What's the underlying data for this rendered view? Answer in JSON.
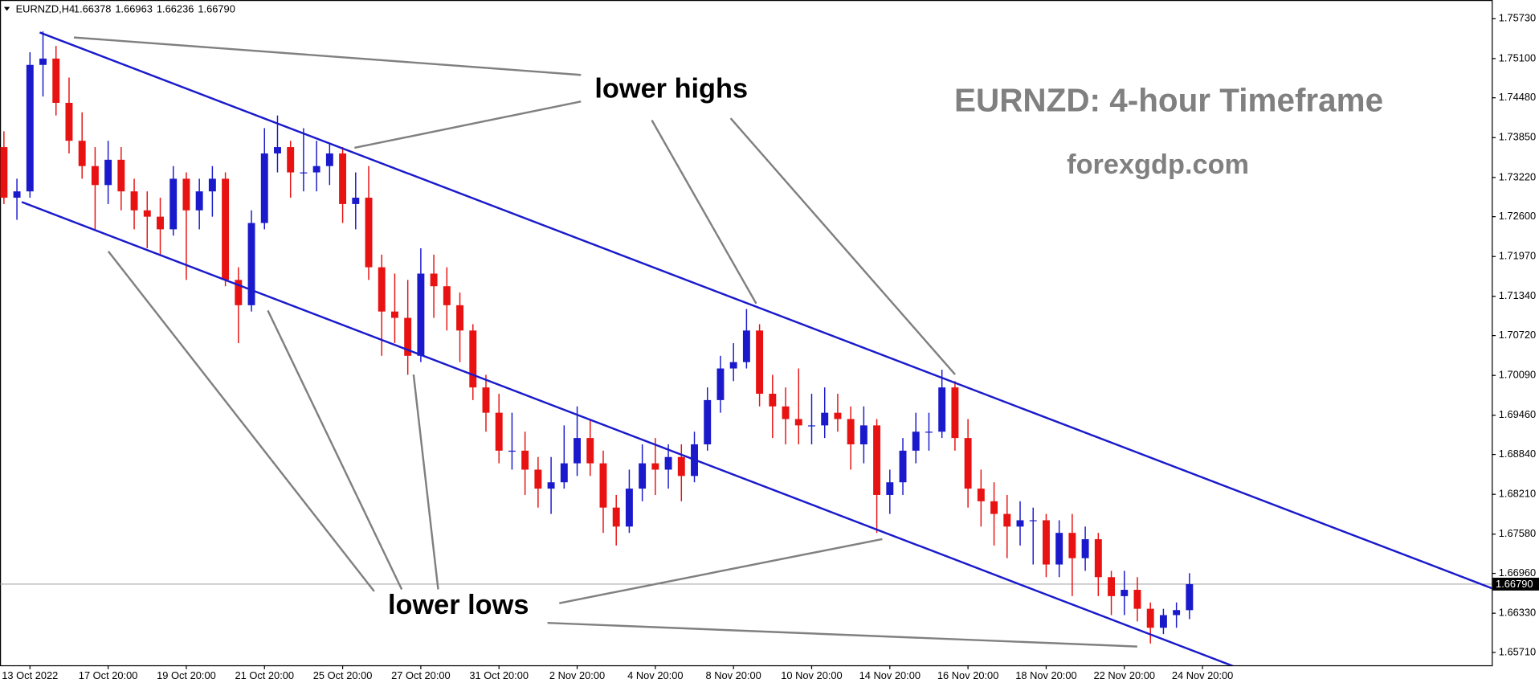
{
  "chart_data": {
    "type": "candlestick",
    "symbol": "EURNZD,H4",
    "header_values": [
      "1.66378",
      "1.66963",
      "1.66236",
      "1.66790"
    ],
    "title": "EURNZD: 4-hour Timeframe",
    "subtitle": "forexgdp.com",
    "annotations": [
      "lower highs",
      "lower lows"
    ],
    "up_color": "#1a1acc",
    "down_color": "#e81212",
    "trendline_color": "#1a1acc",
    "xlim": [
      -0.3,
      114.2
    ],
    "xticks": [
      {
        "value": 2,
        "label": "13 Oct 2022"
      },
      {
        "value": 8,
        "label": "17 Oct 20:00"
      },
      {
        "value": 14,
        "label": "19 Oct 20:00"
      },
      {
        "value": 20,
        "label": "21 Oct 20:00"
      },
      {
        "value": 26,
        "label": "25 Oct 20:00"
      },
      {
        "value": 32,
        "label": "27 Oct 20:00"
      },
      {
        "value": 38,
        "label": "31 Oct 20:00"
      },
      {
        "value": 44,
        "label": "2 Nov 20:00"
      },
      {
        "value": 50,
        "label": "4 Nov 20:00"
      },
      {
        "value": 56,
        "label": "8 Nov 20:00"
      },
      {
        "value": 62,
        "label": "10 Nov 20:00"
      },
      {
        "value": 68,
        "label": "14 Nov 20:00"
      },
      {
        "value": 74,
        "label": "16 Nov 20:00"
      },
      {
        "value": 80,
        "label": "18 Nov 20:00"
      },
      {
        "value": 86,
        "label": "22 Nov 20:00"
      },
      {
        "value": 92,
        "label": "24 Nov 20:00"
      }
    ],
    "ylim": [
      1.65507,
      1.76026
    ],
    "yticks": [
      {
        "value": 1.7573,
        "label": "1.75730"
      },
      {
        "value": 1.751,
        "label": "1.75100"
      },
      {
        "value": 1.7448,
        "label": "1.74480"
      },
      {
        "value": 1.7385,
        "label": "1.73850"
      },
      {
        "value": 1.7322,
        "label": "1.73220"
      },
      {
        "value": 1.726,
        "label": "1.72600"
      },
      {
        "value": 1.7197,
        "label": "1.71970"
      },
      {
        "value": 1.7134,
        "label": "1.71340"
      },
      {
        "value": 1.7072,
        "label": "1.70720"
      },
      {
        "value": 1.7009,
        "label": "1.70090"
      },
      {
        "value": 1.6946,
        "label": "1.69460"
      },
      {
        "value": 1.6884,
        "label": "1.68840"
      },
      {
        "value": 1.6821,
        "label": "1.68210"
      },
      {
        "value": 1.6758,
        "label": "1.67580"
      },
      {
        "value": 1.6696,
        "label": "1.66960"
      },
      {
        "value": 1.6633,
        "label": "1.66330"
      },
      {
        "value": 1.6571,
        "label": "1.65710"
      }
    ],
    "last_price": {
      "value": 1.6679,
      "label": "1.66790"
    },
    "trendlines": [
      {
        "x": [
          2.75,
          115.4
        ],
        "y": [
          1.75512,
          1.66631
        ]
      },
      {
        "x": [
          1.37,
          94.35
        ],
        "y": [
          1.72832,
          1.65494
        ]
      }
    ],
    "open": [
      1.737,
      1.729,
      1.73,
      1.75,
      1.751,
      1.744,
      1.738,
      1.734,
      1.731,
      1.735,
      1.73,
      1.727,
      1.726,
      1.724,
      1.732,
      1.727,
      1.73,
      1.732,
      1.716,
      1.712,
      1.725,
      1.736,
      1.737,
      1.733,
      1.733,
      1.734,
      1.736,
      1.728,
      1.729,
      1.718,
      1.711,
      1.71,
      1.704,
      1.717,
      1.715,
      1.712,
      1.708,
      1.699,
      1.695,
      1.689,
      1.689,
      1.686,
      1.683,
      1.684,
      1.687,
      1.691,
      1.687,
      1.68,
      1.677,
      1.683,
      1.687,
      1.686,
      1.688,
      1.685,
      1.69,
      1.697,
      1.702,
      1.703,
      1.708,
      1.698,
      1.696,
      1.694,
      1.693,
      1.693,
      1.695,
      1.694,
      1.69,
      1.693,
      1.682,
      1.684,
      1.689,
      1.692,
      1.692,
      1.699,
      1.691,
      1.683,
      1.681,
      1.679,
      1.677,
      1.678,
      1.678,
      1.671,
      1.676,
      1.672,
      1.675,
      1.669,
      1.666,
      1.667,
      1.664,
      1.661,
      1.663,
      1.66378
    ],
    "high": [
      1.7395,
      1.732,
      1.752,
      1.7553,
      1.753,
      1.748,
      1.7425,
      1.737,
      1.738,
      1.737,
      1.732,
      1.73,
      1.729,
      1.734,
      1.733,
      1.732,
      1.734,
      1.733,
      1.718,
      1.727,
      1.74,
      1.742,
      1.738,
      1.74,
      1.738,
      1.7375,
      1.737,
      1.733,
      1.734,
      1.72,
      1.717,
      1.716,
      1.721,
      1.72,
      1.718,
      1.714,
      1.709,
      1.701,
      1.698,
      1.695,
      1.692,
      1.688,
      1.688,
      1.693,
      1.696,
      1.694,
      1.689,
      1.682,
      1.686,
      1.69,
      1.691,
      1.69,
      1.69,
      1.692,
      1.699,
      1.704,
      1.706,
      1.7114,
      1.709,
      1.701,
      1.699,
      1.702,
      1.698,
      1.699,
      1.698,
      1.696,
      1.696,
      1.694,
      1.686,
      1.691,
      1.695,
      1.695,
      1.7018,
      1.7,
      1.694,
      1.686,
      1.684,
      1.682,
      1.681,
      1.68,
      1.679,
      1.678,
      1.679,
      1.677,
      1.676,
      1.67,
      1.67,
      1.669,
      1.665,
      1.664,
      1.665,
      1.66963
    ],
    "low": [
      1.728,
      1.7255,
      1.729,
      1.745,
      1.742,
      1.736,
      1.732,
      1.724,
      1.728,
      1.727,
      1.724,
      1.721,
      1.72,
      1.723,
      1.716,
      1.724,
      1.726,
      1.715,
      1.706,
      1.711,
      1.724,
      1.733,
      1.729,
      1.73,
      1.73,
      1.731,
      1.725,
      1.724,
      1.716,
      1.704,
      1.706,
      1.701,
      1.703,
      1.71,
      1.708,
      1.703,
      1.697,
      1.692,
      1.687,
      1.686,
      1.682,
      1.68,
      1.679,
      1.683,
      1.685,
      1.685,
      1.676,
      1.674,
      1.676,
      1.681,
      1.682,
      1.683,
      1.681,
      1.684,
      1.689,
      1.695,
      1.7,
      1.702,
      1.696,
      1.691,
      1.69,
      1.69,
      1.69,
      1.691,
      1.692,
      1.686,
      1.687,
      1.676,
      1.679,
      1.682,
      1.687,
      1.689,
      1.691,
      1.689,
      1.68,
      1.677,
      1.674,
      1.672,
      1.674,
      1.671,
      1.669,
      1.669,
      1.666,
      1.67,
      1.666,
      1.663,
      1.663,
      1.662,
      1.6585,
      1.66,
      1.661,
      1.66236
    ],
    "close": [
      1.729,
      1.73,
      1.75,
      1.751,
      1.744,
      1.738,
      1.734,
      1.731,
      1.735,
      1.73,
      1.727,
      1.726,
      1.724,
      1.732,
      1.727,
      1.73,
      1.732,
      1.716,
      1.712,
      1.725,
      1.736,
      1.737,
      1.733,
      1.733,
      1.734,
      1.736,
      1.728,
      1.729,
      1.718,
      1.711,
      1.71,
      1.704,
      1.717,
      1.715,
      1.712,
      1.708,
      1.699,
      1.695,
      1.689,
      1.689,
      1.686,
      1.683,
      1.684,
      1.687,
      1.691,
      1.687,
      1.68,
      1.677,
      1.683,
      1.687,
      1.686,
      1.688,
      1.685,
      1.69,
      1.697,
      1.702,
      1.703,
      1.708,
      1.698,
      1.696,
      1.694,
      1.693,
      1.693,
      1.695,
      1.694,
      1.69,
      1.693,
      1.682,
      1.684,
      1.689,
      1.692,
      1.692,
      1.699,
      1.691,
      1.683,
      1.681,
      1.679,
      1.677,
      1.678,
      1.678,
      1.671,
      1.676,
      1.672,
      1.675,
      1.669,
      1.666,
      1.667,
      1.664,
      1.661,
      1.663,
      1.6638,
      1.6679
    ]
  }
}
